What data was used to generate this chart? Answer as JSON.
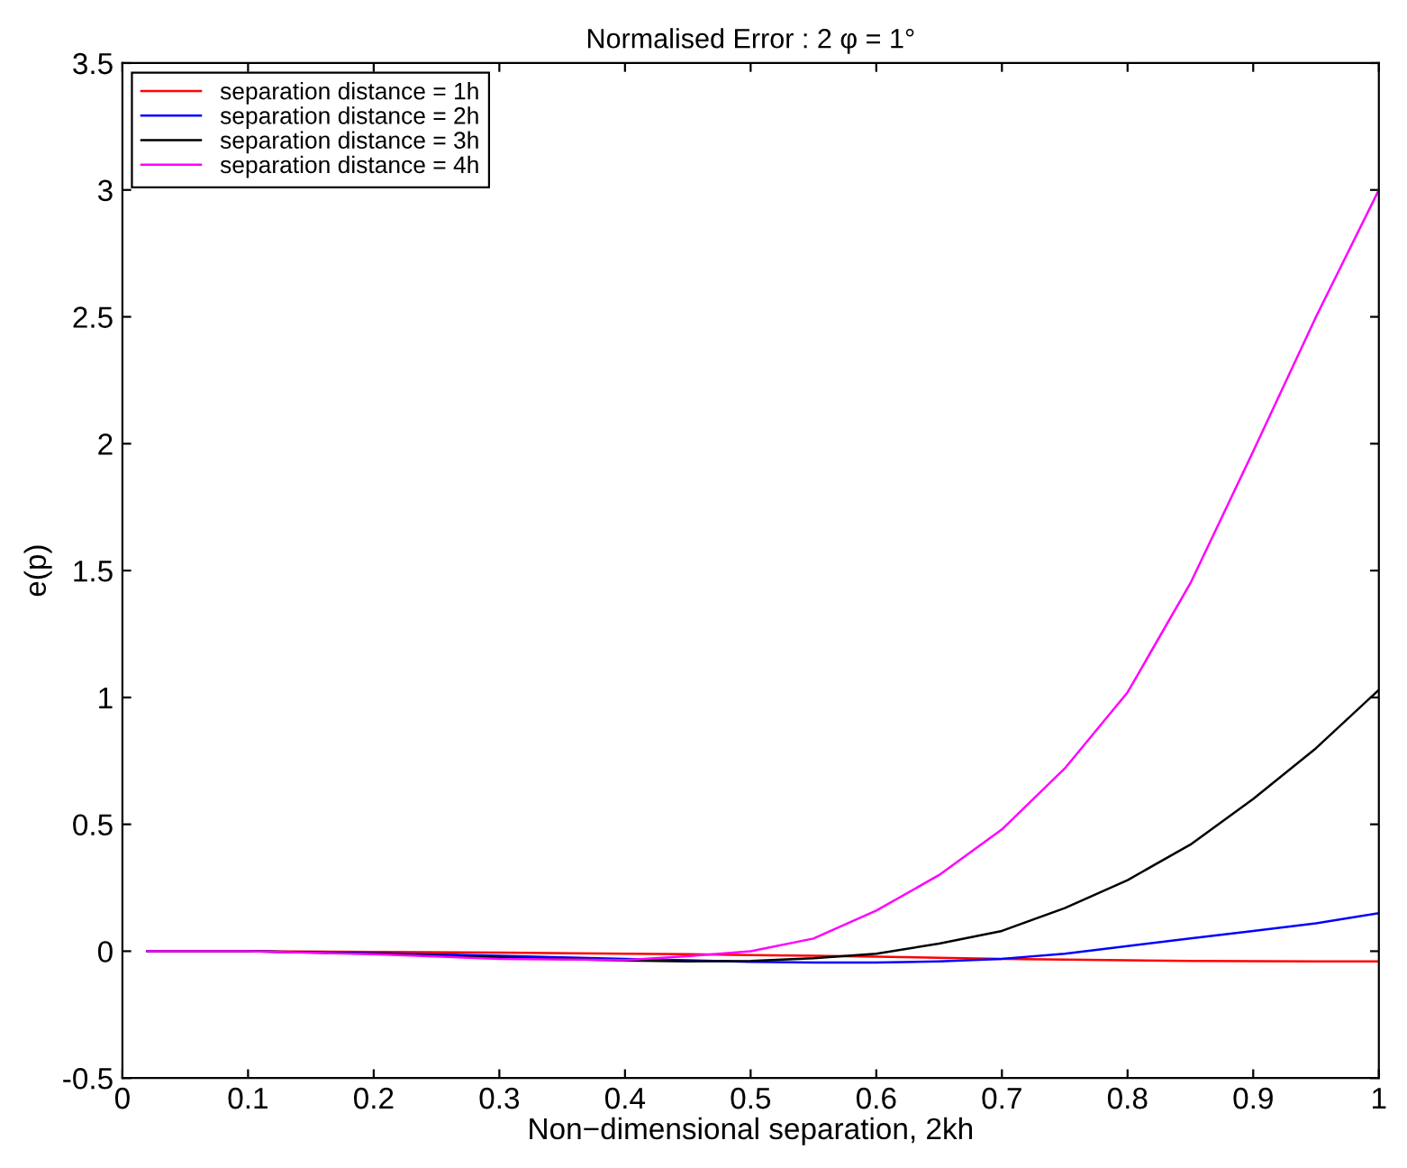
{
  "chart_data": {
    "type": "line",
    "title": "Normalised Error : 2 φ = 1°",
    "xlabel": "Non−dimensional separation, 2kh",
    "ylabel": "e(p)",
    "x": [
      0.02,
      0.1,
      0.2,
      0.3,
      0.4,
      0.45,
      0.5,
      0.55,
      0.6,
      0.65,
      0.7,
      0.75,
      0.8,
      0.85,
      0.9,
      0.95,
      1.0
    ],
    "series": [
      {
        "name": "separation distance = 1h",
        "color": "#ff0000",
        "values": [
          0,
          0,
          -0.003,
          -0.006,
          -0.01,
          -0.012,
          -0.015,
          -0.018,
          -0.022,
          -0.026,
          -0.03,
          -0.033,
          -0.036,
          -0.038,
          -0.039,
          -0.04,
          -0.04
        ]
      },
      {
        "name": "separation distance = 2h",
        "color": "#0000ff",
        "values": [
          0,
          0,
          -0.008,
          -0.018,
          -0.03,
          -0.036,
          -0.042,
          -0.045,
          -0.045,
          -0.04,
          -0.03,
          -0.01,
          0.02,
          0.05,
          0.08,
          0.11,
          0.15
        ]
      },
      {
        "name": "separation distance = 3h",
        "color": "#000000",
        "values": [
          0,
          0,
          -0.01,
          -0.025,
          -0.037,
          -0.04,
          -0.038,
          -0.028,
          -0.01,
          0.03,
          0.08,
          0.17,
          0.28,
          0.42,
          0.6,
          0.8,
          1.03
        ]
      },
      {
        "name": "separation distance = 4h",
        "color": "#ff00ff",
        "values": [
          0,
          0,
          -0.012,
          -0.03,
          -0.035,
          -0.02,
          0,
          0.05,
          0.16,
          0.3,
          0.48,
          0.72,
          1.02,
          1.45,
          1.97,
          2.5,
          3.0
        ]
      }
    ],
    "xlim": [
      0,
      1
    ],
    "xticks": [
      0,
      0.1,
      0.2,
      0.3,
      0.4,
      0.5,
      0.6,
      0.7,
      0.8,
      0.9,
      1
    ],
    "ylim": [
      -0.5,
      3.5
    ],
    "yticks": [
      -0.5,
      0,
      0.5,
      1,
      1.5,
      2,
      2.5,
      3,
      3.5
    ],
    "grid": false,
    "legend": "top left",
    "marker": "none",
    "line_style": "solid"
  }
}
